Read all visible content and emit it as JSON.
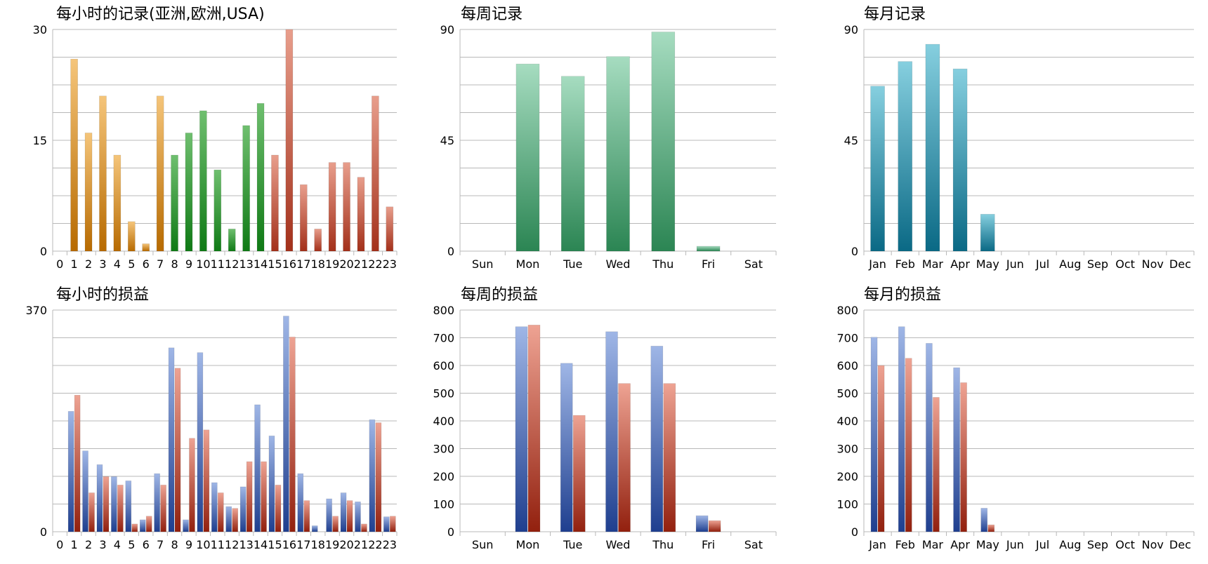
{
  "chart_data": [
    {
      "type": "bar",
      "title": "每小时的记录(亚洲,欧洲,USA)",
      "categories": [
        "0",
        "1",
        "2",
        "3",
        "4",
        "5",
        "6",
        "7",
        "8",
        "9",
        "10",
        "11",
        "12",
        "13",
        "14",
        "15",
        "16",
        "17",
        "18",
        "19",
        "20",
        "21",
        "22",
        "23"
      ],
      "values": [
        0,
        26,
        16,
        21,
        13,
        4,
        1,
        21,
        13,
        16,
        19,
        11,
        3,
        17,
        20,
        13,
        30,
        9,
        3,
        12,
        12,
        10,
        21,
        6
      ],
      "ylim": [
        0,
        30
      ],
      "yticks": [
        0,
        15,
        30
      ],
      "grid": true,
      "colors": {
        "asia_top": "#f5c57a",
        "asia_bottom": "#b76a00",
        "europe_top": "#6fbf6f",
        "europe_bottom": "#0f7a15",
        "usa_top": "#e89e8c",
        "usa_bottom": "#a3301a"
      }
    },
    {
      "type": "bar",
      "title": "每周记录",
      "categories": [
        "Sun",
        "Mon",
        "Tue",
        "Wed",
        "Thu",
        "Fri",
        "Sat"
      ],
      "values": [
        0,
        76,
        71,
        79,
        89,
        2,
        0
      ],
      "ylim": [
        0,
        90
      ],
      "yticks": [
        0,
        45,
        90
      ],
      "grid": true,
      "colors": {
        "top": "#a6dcc0",
        "bottom": "#2b8553"
      }
    },
    {
      "type": "bar",
      "title": "每月记录",
      "categories": [
        "Jan",
        "Feb",
        "Mar",
        "Apr",
        "May",
        "Jun",
        "Jul",
        "Aug",
        "Sep",
        "Oct",
        "Nov",
        "Dec"
      ],
      "values": [
        67,
        77,
        84,
        74,
        15,
        0,
        0,
        0,
        0,
        0,
        0,
        0
      ],
      "ylim": [
        0,
        90
      ],
      "yticks": [
        0,
        45,
        90
      ],
      "grid": true,
      "colors": {
        "top": "#86cfdf",
        "bottom": "#0a6985"
      }
    },
    {
      "type": "bar",
      "title": "每小时的损益",
      "categories": [
        "0",
        "1",
        "2",
        "3",
        "4",
        "5",
        "6",
        "7",
        "8",
        "9",
        "10",
        "11",
        "12",
        "13",
        "14",
        "15",
        "16",
        "17",
        "18",
        "19",
        "20",
        "21",
        "22",
        "23"
      ],
      "series": [
        {
          "values": [
            0,
            201,
            135,
            112,
            92,
            85,
            20,
            97,
            307,
            20,
            299,
            82,
            42,
            75,
            212,
            160,
            360,
            97,
            10,
            55,
            65,
            50,
            187,
            25
          ]
        },
        {
          "values": [
            0,
            228,
            65,
            92,
            78,
            13,
            26,
            78,
            273,
            156,
            170,
            65,
            39,
            117,
            117,
            78,
            325,
            52,
            0,
            26,
            52,
            13,
            182,
            26
          ]
        }
      ],
      "ylim": [
        0,
        370
      ],
      "yticks": [
        0,
        370
      ],
      "grid": true,
      "colors": {
        "s1_top": "#9fb6e6",
        "s1_bottom": "#1f3f8f",
        "s2_top": "#eea393",
        "s2_bottom": "#92200e"
      }
    },
    {
      "type": "bar",
      "title": "每周的损益",
      "categories": [
        "Sun",
        "Mon",
        "Tue",
        "Wed",
        "Thu",
        "Fri",
        "Sat"
      ],
      "series": [
        {
          "values": [
            0,
            740,
            608,
            722,
            670,
            58,
            0
          ]
        },
        {
          "values": [
            0,
            746,
            420,
            535,
            535,
            40,
            0
          ]
        }
      ],
      "ylim": [
        0,
        800
      ],
      "yticks": [
        0,
        100,
        200,
        300,
        400,
        500,
        600,
        700,
        800
      ],
      "grid": true,
      "colors": {
        "s1_top": "#9fb6e6",
        "s1_bottom": "#1f3f8f",
        "s2_top": "#eea393",
        "s2_bottom": "#92200e"
      }
    },
    {
      "type": "bar",
      "title": "每月的损益",
      "categories": [
        "Jan",
        "Feb",
        "Mar",
        "Apr",
        "May",
        "Jun",
        "Jul",
        "Aug",
        "Sep",
        "Oct",
        "Nov",
        "Dec"
      ],
      "series": [
        {
          "values": [
            702,
            740,
            680,
            592,
            85,
            0,
            0,
            0,
            0,
            0,
            0,
            0
          ]
        },
        {
          "values": [
            600,
            626,
            485,
            538,
            25,
            0,
            0,
            0,
            0,
            0,
            0,
            0
          ]
        }
      ],
      "ylim": [
        0,
        800
      ],
      "yticks": [
        0,
        100,
        200,
        300,
        400,
        500,
        600,
        700,
        800
      ],
      "grid": true,
      "colors": {
        "s1_top": "#9fb6e6",
        "s1_bottom": "#1f3f8f",
        "s2_top": "#eea393",
        "s2_bottom": "#92200e"
      }
    }
  ]
}
